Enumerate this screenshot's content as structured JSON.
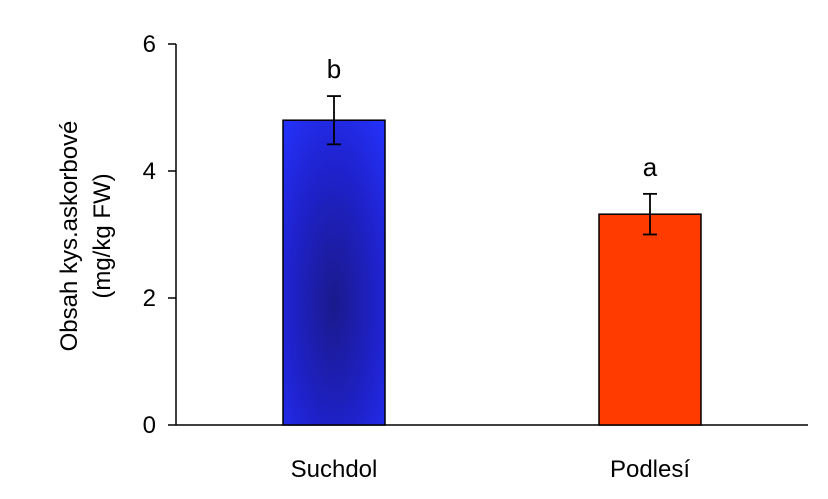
{
  "chart_data": {
    "type": "bar",
    "title": "",
    "xlabel": "",
    "ylabel_lines": [
      "Obsah kys.askorbové",
      "(mg/kg FW)"
    ],
    "ylim": [
      0,
      6
    ],
    "yticks": [
      0,
      2,
      4,
      6
    ],
    "categories": [
      "Suchdol",
      "Podlesí"
    ],
    "values": [
      4.8,
      3.32
    ],
    "errors": [
      0.38,
      0.32
    ],
    "significance": [
      "b",
      "a"
    ],
    "colors": [
      "#1f1fe6",
      "#ff3b00"
    ],
    "grid": false,
    "legend": "none"
  }
}
